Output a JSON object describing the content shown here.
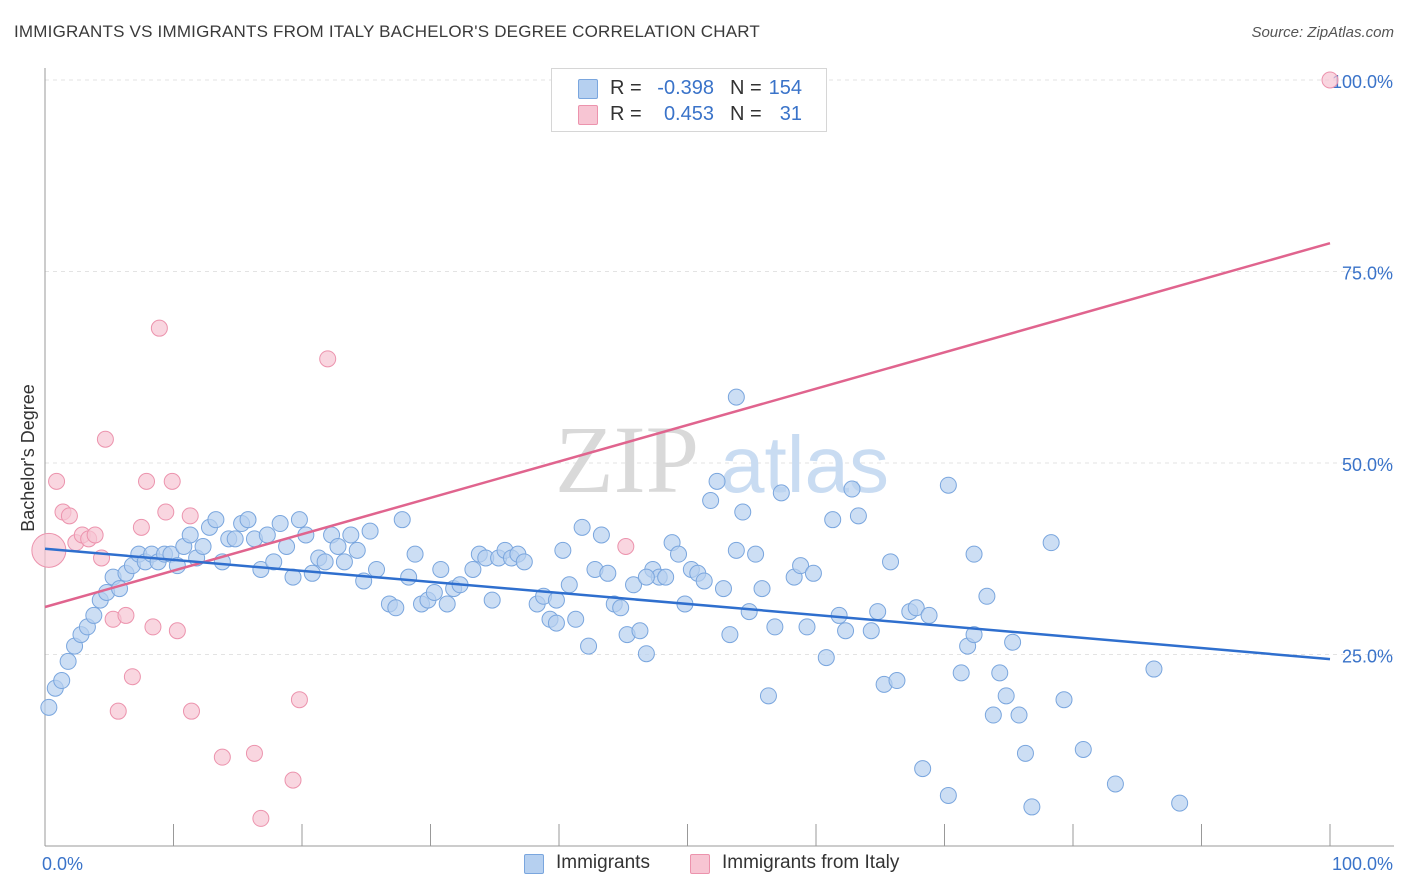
{
  "title": "IMMIGRANTS VS IMMIGRANTS FROM ITALY BACHELOR'S DEGREE CORRELATION CHART",
  "source": "Source: ZipAtlas.com",
  "watermark": {
    "zip": "ZIP",
    "atlas": "atlas"
  },
  "colors": {
    "blue_fill": "#b6d0f0",
    "blue_stroke": "#7aa6de",
    "blue_line": "#2f6fce",
    "pink_fill": "#f7c5d3",
    "pink_stroke": "#ec93ad",
    "pink_line": "#e0648e",
    "tick_text": "#3a73c9",
    "grid": "#e3e3e3"
  },
  "legend": {
    "rows": [
      {
        "r_label": "R =",
        "r_value": "-0.398",
        "n_label": "N =",
        "n_value": "154"
      },
      {
        "r_label": "R =",
        "r_value": "0.453",
        "n_label": "N =",
        "n_value": "31"
      }
    ]
  },
  "bottom_legend": {
    "immigrants": "Immigrants",
    "italy": "Immigrants from Italy"
  },
  "chart_data": {
    "type": "scatter",
    "title": "IMMIGRANTS VS IMMIGRANTS FROM ITALY BACHELOR'S DEGREE CORRELATION CHART",
    "xlabel": "",
    "ylabel": "Bachelor's Degree",
    "xlim": [
      0,
      100
    ],
    "ylim": [
      0,
      100
    ],
    "x_tick_labels": [
      "0.0%",
      "100.0%"
    ],
    "y_ticks": [
      25,
      50,
      75,
      100
    ],
    "y_tick_labels": [
      "25.0%",
      "50.0%",
      "75.0%",
      "100.0%"
    ],
    "grid": true,
    "series": [
      {
        "name": "Immigrants",
        "r": -0.398,
        "n": 154,
        "trend": {
          "x": [
            0,
            100
          ],
          "y": [
            38.8,
            24.4
          ]
        },
        "points": [
          [
            0.3,
            18.1
          ],
          [
            0.8,
            20.6
          ],
          [
            1.3,
            21.6
          ],
          [
            1.8,
            24.1
          ],
          [
            2.3,
            26.1
          ],
          [
            2.8,
            27.6
          ],
          [
            3.3,
            28.6
          ],
          [
            3.8,
            30.1
          ],
          [
            4.3,
            32.1
          ],
          [
            4.8,
            33.1
          ],
          [
            5.3,
            35.1
          ],
          [
            5.8,
            33.6
          ],
          [
            6.3,
            35.6
          ],
          [
            6.8,
            36.6
          ],
          [
            7.3,
            38.1
          ],
          [
            7.8,
            37.1
          ],
          [
            8.3,
            38.1
          ],
          [
            8.8,
            37.1
          ],
          [
            9.3,
            38.1
          ],
          [
            9.8,
            38.1
          ],
          [
            10.3,
            36.6
          ],
          [
            10.8,
            39.1
          ],
          [
            11.3,
            40.6
          ],
          [
            11.8,
            37.6
          ],
          [
            12.3,
            39.1
          ],
          [
            12.8,
            41.6
          ],
          [
            13.3,
            42.6
          ],
          [
            13.8,
            37.1
          ],
          [
            14.3,
            40.1
          ],
          [
            14.8,
            40.1
          ],
          [
            15.3,
            42.1
          ],
          [
            15.8,
            42.6
          ],
          [
            16.3,
            40.1
          ],
          [
            16.8,
            36.1
          ],
          [
            17.3,
            40.6
          ],
          [
            17.8,
            37.1
          ],
          [
            18.3,
            42.1
          ],
          [
            18.8,
            39.1
          ],
          [
            19.3,
            35.1
          ],
          [
            19.8,
            42.6
          ],
          [
            20.3,
            40.6
          ],
          [
            20.8,
            35.6
          ],
          [
            21.3,
            37.6
          ],
          [
            21.8,
            37.1
          ],
          [
            22.3,
            40.6
          ],
          [
            22.8,
            39.1
          ],
          [
            23.3,
            37.1
          ],
          [
            23.8,
            40.6
          ],
          [
            24.3,
            38.6
          ],
          [
            24.8,
            34.6
          ],
          [
            25.3,
            41.1
          ],
          [
            25.8,
            36.1
          ],
          [
            26.8,
            31.6
          ],
          [
            27.3,
            31.1
          ],
          [
            27.8,
            42.6
          ],
          [
            28.3,
            35.1
          ],
          [
            28.8,
            38.1
          ],
          [
            29.3,
            31.6
          ],
          [
            29.8,
            32.1
          ],
          [
            30.3,
            33.1
          ],
          [
            30.8,
            36.1
          ],
          [
            31.3,
            31.6
          ],
          [
            31.8,
            33.6
          ],
          [
            32.3,
            34.1
          ],
          [
            33.3,
            36.1
          ],
          [
            33.8,
            38.1
          ],
          [
            34.3,
            37.6
          ],
          [
            34.8,
            32.1
          ],
          [
            35.3,
            37.6
          ],
          [
            35.8,
            38.6
          ],
          [
            36.3,
            37.6
          ],
          [
            36.8,
            38.1
          ],
          [
            37.3,
            37.1
          ],
          [
            38.3,
            31.6
          ],
          [
            38.8,
            32.6
          ],
          [
            39.3,
            29.6
          ],
          [
            39.8,
            29.1
          ],
          [
            40.3,
            38.6
          ],
          [
            40.8,
            34.1
          ],
          [
            41.3,
            29.6
          ],
          [
            41.8,
            41.6
          ],
          [
            42.3,
            26.1
          ],
          [
            42.8,
            36.1
          ],
          [
            43.3,
            40.6
          ],
          [
            43.8,
            35.6
          ],
          [
            44.3,
            31.6
          ],
          [
            44.8,
            31.1
          ],
          [
            45.3,
            27.6
          ],
          [
            45.8,
            34.1
          ],
          [
            46.3,
            28.1
          ],
          [
            46.8,
            25.1
          ],
          [
            47.3,
            36.1
          ],
          [
            47.8,
            35.1
          ],
          [
            48.3,
            35.1
          ],
          [
            48.8,
            39.6
          ],
          [
            49.3,
            38.1
          ],
          [
            49.8,
            31.6
          ],
          [
            50.3,
            36.1
          ],
          [
            50.8,
            35.6
          ],
          [
            51.3,
            34.6
          ],
          [
            51.8,
            45.1
          ],
          [
            52.3,
            47.6
          ],
          [
            52.8,
            33.6
          ],
          [
            53.3,
            27.6
          ],
          [
            53.8,
            38.6
          ],
          [
            54.3,
            43.6
          ],
          [
            54.8,
            30.6
          ],
          [
            55.3,
            38.1
          ],
          [
            55.8,
            33.6
          ],
          [
            56.3,
            19.6
          ],
          [
            56.8,
            28.6
          ],
          [
            57.3,
            46.1
          ],
          [
            58.3,
            35.1
          ],
          [
            58.8,
            36.6
          ],
          [
            59.3,
            28.6
          ],
          [
            59.8,
            35.6
          ],
          [
            60.8,
            24.6
          ],
          [
            61.3,
            42.6
          ],
          [
            61.8,
            30.1
          ],
          [
            62.3,
            28.1
          ],
          [
            62.8,
            46.6
          ],
          [
            63.3,
            43.1
          ],
          [
            64.3,
            28.1
          ],
          [
            64.8,
            30.6
          ],
          [
            65.3,
            21.1
          ],
          [
            65.8,
            37.1
          ],
          [
            66.3,
            21.6
          ],
          [
            67.3,
            30.6
          ],
          [
            67.8,
            31.1
          ],
          [
            68.3,
            10.1
          ],
          [
            68.8,
            30.1
          ],
          [
            70.3,
            6.6
          ],
          [
            71.3,
            22.6
          ],
          [
            71.8,
            26.1
          ],
          [
            72.3,
            27.6
          ],
          [
            73.3,
            32.6
          ],
          [
            73.8,
            17.1
          ],
          [
            74.3,
            22.6
          ],
          [
            74.8,
            19.6
          ],
          [
            75.3,
            26.6
          ],
          [
            75.8,
            17.1
          ],
          [
            76.3,
            12.1
          ],
          [
            76.8,
            5.1
          ],
          [
            78.3,
            39.6
          ],
          [
            79.3,
            19.1
          ],
          [
            80.8,
            12.6
          ],
          [
            83.3,
            8.1
          ],
          [
            86.3,
            23.1
          ],
          [
            88.3,
            5.6
          ],
          [
            72.3,
            38.1
          ],
          [
            70.3,
            47.1
          ],
          [
            53.8,
            58.6
          ],
          [
            46.8,
            35.1
          ],
          [
            39.8,
            32.1
          ]
        ]
      },
      {
        "name": "Immigrants from Italy",
        "r": 0.453,
        "n": 31,
        "trend": {
          "x": [
            0,
            100
          ],
          "y": [
            31.2,
            78.7
          ]
        },
        "points": [
          [
            0.3,
            38.6
          ],
          [
            0.9,
            47.6
          ],
          [
            1.4,
            43.6
          ],
          [
            1.9,
            43.1
          ],
          [
            2.4,
            39.6
          ],
          [
            2.9,
            40.6
          ],
          [
            3.4,
            40.1
          ],
          [
            3.9,
            40.6
          ],
          [
            4.4,
            37.6
          ],
          [
            4.7,
            53.1
          ],
          [
            5.3,
            29.6
          ],
          [
            5.7,
            17.6
          ],
          [
            6.3,
            30.1
          ],
          [
            6.8,
            22.1
          ],
          [
            7.5,
            41.6
          ],
          [
            7.9,
            47.6
          ],
          [
            8.4,
            28.6
          ],
          [
            8.9,
            67.6
          ],
          [
            9.4,
            43.6
          ],
          [
            9.9,
            47.6
          ],
          [
            10.3,
            28.1
          ],
          [
            11.3,
            43.1
          ],
          [
            11.4,
            17.6
          ],
          [
            13.8,
            11.6
          ],
          [
            16.3,
            12.1
          ],
          [
            16.8,
            3.6
          ],
          [
            19.3,
            8.6
          ],
          [
            19.8,
            19.1
          ],
          [
            22.0,
            63.6
          ],
          [
            45.2,
            39.1
          ],
          [
            100.0,
            100.0
          ]
        ]
      }
    ]
  }
}
